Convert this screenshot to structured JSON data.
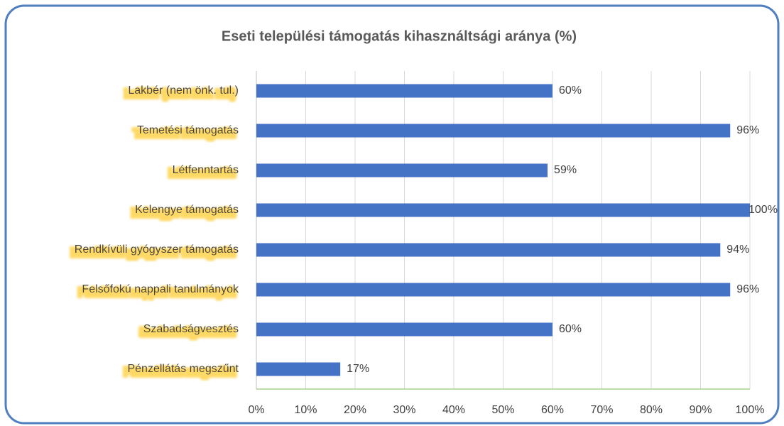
{
  "chart_data": {
    "type": "barh",
    "title": "Eseti települési támogatás kihasználtsági aránya (%)",
    "categories": [
      "Lakbér (nem önk. tul.)",
      "Temetési támogatás",
      "Létfenntartás",
      "Kelengye támogatás",
      "Rendkívüli gyógyszer támogatás",
      "Felsőfokú nappali tanulmányok",
      "Szabadságvesztés",
      "Pénzellátás megszűnt"
    ],
    "values": [
      60,
      96,
      59,
      100,
      94,
      96,
      60,
      17
    ],
    "value_labels": [
      "60%",
      "96%",
      "59%",
      "100%",
      "94%",
      "96%",
      "60%",
      "17%"
    ],
    "color": "#4472c4",
    "xlim": [
      0,
      100
    ],
    "xticks": [
      {
        "value": 0,
        "label": "0%"
      },
      {
        "value": 10,
        "label": "10%"
      },
      {
        "value": 20,
        "label": "20%"
      },
      {
        "value": 30,
        "label": "30%"
      },
      {
        "value": 40,
        "label": "40%"
      },
      {
        "value": 50,
        "label": "50%"
      },
      {
        "value": 60,
        "label": "60%"
      },
      {
        "value": 70,
        "label": "70%"
      },
      {
        "value": 80,
        "label": "80%"
      },
      {
        "value": 90,
        "label": "90%"
      },
      {
        "value": 100,
        "label": "100%"
      }
    ],
    "grid": true
  }
}
